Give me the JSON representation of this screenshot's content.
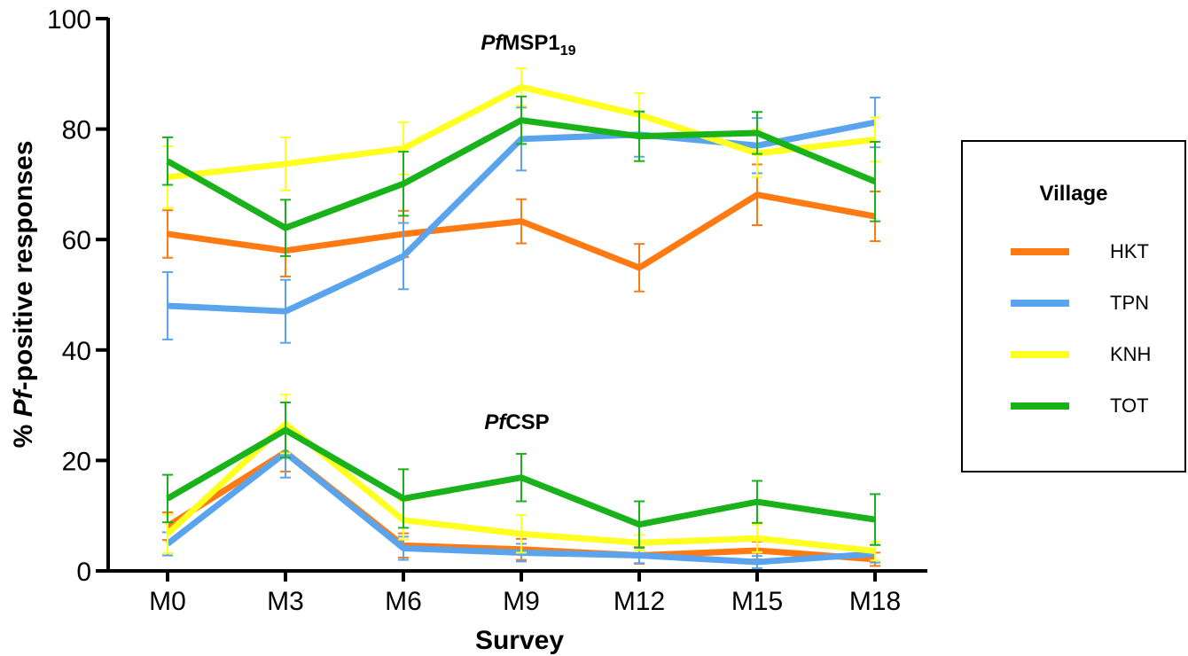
{
  "chart_data": {
    "type": "line",
    "xlabel": "Survey",
    "ylabel_parts": {
      "prefix": "% ",
      "italic": "Pf",
      "suffix": "-positive responses"
    },
    "ylim": [
      0,
      100
    ],
    "yticks": [
      "0",
      "20",
      "40",
      "60",
      "80",
      "100"
    ],
    "ytick_values": [
      0,
      20,
      40,
      60,
      80,
      100
    ],
    "categories": [
      "M0",
      "M3",
      "M6",
      "M9",
      "M12",
      "M15",
      "M18"
    ],
    "legend": {
      "title": "Village",
      "position": "right"
    },
    "panels": [
      {
        "label": {
          "italic": "Pf",
          "normal": "MSP1",
          "subscript": "19"
        },
        "series": [
          {
            "name": "HKT",
            "color": "#FF7A12",
            "values": [
              61,
              58,
              61,
              63.3,
              54.9,
              68.1,
              64.2
            ],
            "err": [
              4.3,
              4.7,
              4.2,
              4.0,
              4.3,
              5.5,
              4.5
            ]
          },
          {
            "name": "TPN",
            "color": "#5AA4EE",
            "values": [
              48,
              47,
              57,
              78.2,
              79,
              77,
              81.2
            ],
            "err": [
              6.1,
              5.7,
              6.0,
              5.7,
              4.0,
              5.0,
              4.5
            ]
          },
          {
            "name": "KNH",
            "color": "#FFFF20",
            "values": [
              71.3,
              73.7,
              76.5,
              87.6,
              82.6,
              75.6,
              78.1
            ],
            "err": [
              5.6,
              4.8,
              4.7,
              3.4,
              3.9,
              4.3,
              4.0
            ]
          },
          {
            "name": "TOT",
            "color": "#19B21A",
            "values": [
              74.2,
              62.1,
              70.1,
              81.6,
              78.7,
              79.3,
              70.5
            ],
            "err": [
              4.3,
              5.1,
              5.8,
              4.3,
              4.5,
              3.8,
              7.2
            ]
          }
        ]
      },
      {
        "label": {
          "italic": "Pf",
          "normal": "CSP",
          "subscript": ""
        },
        "series": [
          {
            "name": "HKT",
            "color": "#FF7A12",
            "values": [
              8.1,
              21.5,
              4.6,
              3.9,
              2.8,
              3.7,
              2.1
            ],
            "err": [
              2.5,
              3.5,
              2.2,
              1.9,
              1.5,
              1.6,
              1.2
            ]
          },
          {
            "name": "TPN",
            "color": "#5AA4EE",
            "values": [
              4.9,
              21.4,
              4.1,
              3.3,
              2.8,
              1.6,
              3.1
            ],
            "err": [
              2.1,
              4.5,
              2.1,
              1.6,
              1.4,
              1.1,
              1.6
            ]
          },
          {
            "name": "KNH",
            "color": "#FFFF20",
            "values": [
              6.7,
              26.6,
              9.2,
              6.7,
              5.1,
              5.9,
              3.6
            ],
            "err": [
              3.5,
              5.3,
              3.5,
              3.4,
              1.4,
              2.5,
              1.7
            ]
          },
          {
            "name": "TOT",
            "color": "#19B21A",
            "values": [
              13.1,
              25.5,
              13.1,
              16.9,
              8.4,
              12.5,
              9.3
            ],
            "err": [
              4.3,
              5.0,
              5.3,
              4.3,
              4.2,
              3.8,
              4.6
            ]
          }
        ]
      }
    ]
  }
}
